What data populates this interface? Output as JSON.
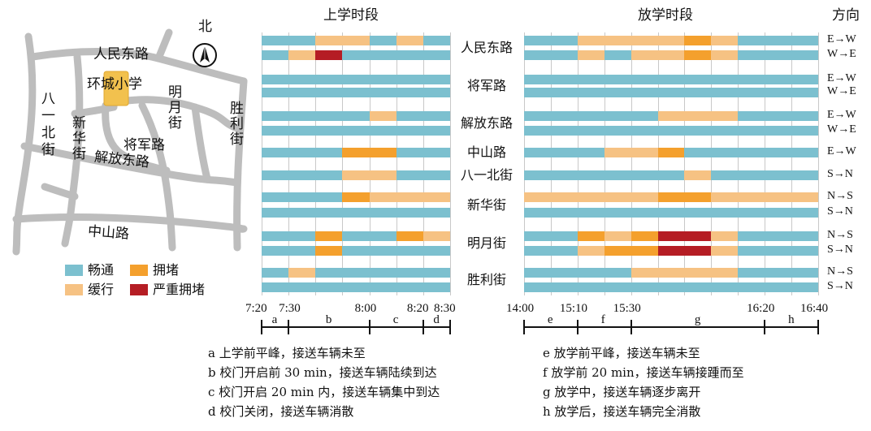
{
  "colors": {
    "smooth": "#7cc0cf",
    "congested": "#f4a02d",
    "slow": "#f6c283",
    "severe": "#b51d24",
    "road": "#bdbdbd",
    "school": "#f2c14e"
  },
  "map": {
    "north_label": "北",
    "roads": [
      "人民东路",
      "将军路",
      "解放东路",
      "中山路"
    ],
    "school": "环城小学",
    "vertical_roads": [
      "八一北街",
      "新华街",
      "明月街",
      "胜利街"
    ]
  },
  "legend": [
    {
      "label": "畅通",
      "color_key": "smooth"
    },
    {
      "label": "拥堵",
      "color_key": "congested"
    },
    {
      "label": "缓行",
      "color_key": "slow"
    },
    {
      "label": "严重拥堵",
      "color_key": "severe"
    }
  ],
  "headers": {
    "morning": "上学时段",
    "afternoon": "放学时段",
    "direction": "方向"
  },
  "time_axis": {
    "morning_ticks": [
      "7:20",
      "7:30",
      "8:00",
      "8:20",
      "8:30"
    ],
    "afternoon_ticks": [
      "14:00",
      "15:10",
      "15:30",
      "16:20",
      "16:40"
    ],
    "morning_periods": [
      "a",
      "b",
      "c",
      "d"
    ],
    "afternoon_periods": [
      "e",
      "f",
      "g",
      "h"
    ]
  },
  "roads": [
    {
      "name": "人民东路",
      "rows": [
        {
          "dir": "E→W",
          "morning": [
            "s",
            "s",
            "l",
            "l",
            "s",
            "l",
            "s"
          ],
          "afternoon": [
            "s",
            "s",
            "l",
            "l",
            "l",
            "l",
            "c",
            "l",
            "s",
            "s",
            "s"
          ]
        },
        {
          "dir": "W→E",
          "morning": [
            "s",
            "l",
            "x",
            "s",
            "s",
            "s",
            "s"
          ],
          "afternoon": [
            "s",
            "s",
            "l",
            "s",
            "l",
            "l",
            "c",
            "l",
            "s",
            "s",
            "s"
          ]
        }
      ]
    },
    {
      "name": "将军路",
      "rows": [
        {
          "dir": "E→W",
          "morning": [
            "s",
            "s",
            "s",
            "s",
            "s",
            "s",
            "s"
          ],
          "afternoon": [
            "s",
            "s",
            "s",
            "s",
            "s",
            "s",
            "s",
            "s",
            "s",
            "s",
            "s"
          ]
        },
        {
          "dir": "W→E",
          "morning": [
            "s",
            "s",
            "s",
            "s",
            "s",
            "s",
            "s"
          ],
          "afternoon": [
            "s",
            "s",
            "s",
            "s",
            "s",
            "s",
            "s",
            "s",
            "s",
            "s",
            "s"
          ]
        }
      ]
    },
    {
      "name": "解放东路",
      "rows": [
        {
          "dir": "E→W",
          "morning": [
            "s",
            "s",
            "s",
            "s",
            "l",
            "s",
            "s"
          ],
          "afternoon": [
            "s",
            "s",
            "s",
            "s",
            "s",
            "l",
            "l",
            "l",
            "s",
            "s",
            "s"
          ]
        },
        {
          "dir": "W→E",
          "morning": [
            "s",
            "s",
            "s",
            "s",
            "s",
            "s",
            "s"
          ],
          "afternoon": [
            "s",
            "s",
            "s",
            "s",
            "s",
            "s",
            "s",
            "s",
            "s",
            "s",
            "s"
          ]
        }
      ]
    },
    {
      "name": "中山路",
      "rows": [
        {
          "dir": "E→W",
          "morning": [
            "s",
            "s",
            "s",
            "c",
            "c",
            "s",
            "s"
          ],
          "afternoon": [
            "s",
            "s",
            "s",
            "l",
            "l",
            "c",
            "s",
            "s",
            "s",
            "s",
            "s"
          ]
        }
      ]
    },
    {
      "name": "八一北街",
      "rows": [
        {
          "dir": "S→N",
          "morning": [
            "s",
            "s",
            "s",
            "l",
            "l",
            "s",
            "s"
          ],
          "afternoon": [
            "s",
            "s",
            "s",
            "s",
            "s",
            "s",
            "l",
            "s",
            "s",
            "s",
            "s"
          ]
        }
      ]
    },
    {
      "name": "新华街",
      "rows": [
        {
          "dir": "N→S",
          "morning": [
            "s",
            "s",
            "s",
            "c",
            "l",
            "l",
            "l"
          ],
          "afternoon": [
            "l",
            "l",
            "l",
            "l",
            "l",
            "c",
            "c",
            "l",
            "l",
            "l",
            "l"
          ]
        },
        {
          "dir": "S→N",
          "morning": [
            "s",
            "s",
            "s",
            "s",
            "s",
            "s",
            "s"
          ],
          "afternoon": [
            "s",
            "s",
            "s",
            "s",
            "s",
            "s",
            "s",
            "s",
            "s",
            "s",
            "s"
          ]
        }
      ]
    },
    {
      "name": "明月街",
      "rows": [
        {
          "dir": "N→S",
          "morning": [
            "s",
            "s",
            "c",
            "s",
            "s",
            "c",
            "l"
          ],
          "afternoon": [
            "s",
            "s",
            "c",
            "l",
            "c",
            "x",
            "x",
            "l",
            "s",
            "s",
            "s"
          ]
        },
        {
          "dir": "S→N",
          "morning": [
            "s",
            "s",
            "c",
            "s",
            "s",
            "s",
            "s"
          ],
          "afternoon": [
            "s",
            "s",
            "l",
            "c",
            "c",
            "x",
            "x",
            "l",
            "s",
            "s",
            "s"
          ]
        }
      ]
    },
    {
      "name": "胜利街",
      "rows": [
        {
          "dir": "N→S",
          "morning": [
            "s",
            "l",
            "s",
            "s",
            "s",
            "s",
            "s"
          ],
          "afternoon": [
            "s",
            "s",
            "s",
            "s",
            "l",
            "l",
            "l",
            "l",
            "s",
            "s",
            "s"
          ]
        },
        {
          "dir": "S→N",
          "morning": [
            "s",
            "s",
            "s",
            "s",
            "s",
            "s",
            "s"
          ],
          "afternoon": [
            "s",
            "s",
            "s",
            "s",
            "s",
            "s",
            "s",
            "s",
            "s",
            "s",
            "s"
          ]
        }
      ]
    }
  ],
  "notes_left": [
    "a 上学前平峰，接送车辆未至",
    "b 校门开启前 30 min，接送车辆陆续到达",
    "c 校门开启 20 min 内，接送车辆集中到达",
    "d 校门关闭，接送车辆消散"
  ],
  "notes_right": [
    "e 放学前平峰，接送车辆未至",
    "f 放学前 20 min，接送车辆接踵而至",
    "g 放学中，接送车辆逐步离开",
    "h 放学后，接送车辆完全消散"
  ]
}
